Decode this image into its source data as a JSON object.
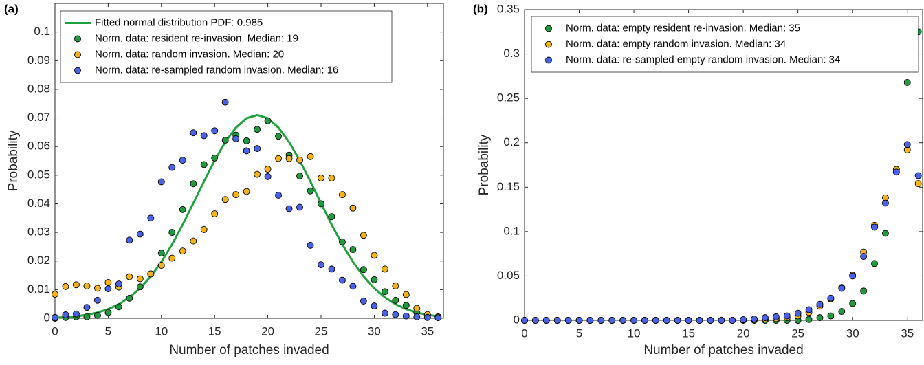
{
  "chart_data": [
    {
      "type": "scatter",
      "panel_label": "(a)",
      "x_label": "Number of patches invaded",
      "y_label": "Probability",
      "x": [
        0,
        1,
        2,
        3,
        4,
        5,
        6,
        7,
        8,
        9,
        10,
        11,
        12,
        13,
        14,
        15,
        16,
        17,
        18,
        19,
        20,
        21,
        22,
        23,
        24,
        25,
        26,
        27,
        28,
        29,
        30,
        31,
        32,
        33,
        34,
        35,
        36
      ],
      "xlim": [
        0,
        36.5
      ],
      "ylim": [
        0,
        0.11
      ],
      "xticks": [
        0,
        5,
        10,
        15,
        20,
        25,
        30,
        35
      ],
      "yticks": [
        0,
        0.01,
        0.02,
        0.03,
        0.04,
        0.05,
        0.06,
        0.07,
        0.08,
        0.09,
        0.1
      ],
      "legend": "upper left",
      "series": [
        {
          "name": "Fitted normal distribution PDF: 0.985",
          "color": "#1fa23c",
          "kind": "line",
          "values": [
            0.0002,
            0.0004,
            0.0007,
            0.0012,
            0.002,
            0.0032,
            0.0049,
            0.0073,
            0.0105,
            0.0146,
            0.0197,
            0.0258,
            0.0327,
            0.0402,
            0.0478,
            0.0551,
            0.0616,
            0.0666,
            0.0699,
            0.071,
            0.0699,
            0.0666,
            0.0616,
            0.0551,
            0.0478,
            0.0402,
            0.0327,
            0.0258,
            0.0197,
            0.0146,
            0.0105,
            0.0073,
            0.0049,
            0.0032,
            0.002,
            0.0012,
            0.0007
          ]
        },
        {
          "name": "Norm. data: resident re-invasion. Median: 19",
          "color": "#1f9a3e",
          "kind": "marker",
          "values": [
            0,
            0.0003,
            0.0005,
            0.0005,
            0.001,
            0.002,
            0.004,
            0.007,
            0.011,
            0.0155,
            0.0228,
            0.03,
            0.038,
            0.047,
            0.0537,
            0.056,
            0.0622,
            0.064,
            0.062,
            0.066,
            0.069,
            0.0636,
            0.057,
            0.0497,
            0.0445,
            0.04,
            0.0355,
            0.0267,
            0.024,
            0.017,
            0.0135,
            0.0093,
            0.0063,
            0.0045,
            0.002,
            0.001,
            0.0005
          ]
        },
        {
          "name": "Norm. data: random invasion. Median: 20",
          "color": "#f4b21b",
          "kind": "marker",
          "values": [
            0.0084,
            0.0111,
            0.0117,
            0.0113,
            0.0105,
            0.0125,
            0.0109,
            0.0145,
            0.0138,
            0.0155,
            0.0185,
            0.021,
            0.0235,
            0.027,
            0.031,
            0.0365,
            0.0415,
            0.0432,
            0.0443,
            0.0503,
            0.0521,
            0.0558,
            0.0558,
            0.0553,
            0.0565,
            0.049,
            0.049,
            0.0432,
            0.0385,
            0.029,
            0.022,
            0.0172,
            0.0113,
            0.0083,
            0.0035,
            0.0013,
            0.0005
          ]
        },
        {
          "name": "Norm. data: re-sampled random invasion. Median: 16",
          "color": "#4a62e6",
          "kind": "marker",
          "values": [
            0.0003,
            0.0012,
            0.0015,
            0.0038,
            0.0063,
            0.0103,
            0.012,
            0.0273,
            0.0294,
            0.035,
            0.0477,
            0.0527,
            0.0552,
            0.0648,
            0.0638,
            0.0655,
            0.0755,
            0.0627,
            0.0585,
            0.0593,
            0.0495,
            0.043,
            0.0383,
            0.0388,
            0.0255,
            0.0187,
            0.0172,
            0.0133,
            0.0112,
            0.006,
            0.0043,
            0.0018,
            0.0013,
            0.0008,
            0.0005,
            0.0003,
            0.0002
          ]
        }
      ]
    },
    {
      "type": "scatter",
      "panel_label": "(b)",
      "x_label": "Number of patches invaded",
      "y_label": "Probability",
      "x": [
        0,
        1,
        2,
        3,
        4,
        5,
        6,
        7,
        8,
        9,
        10,
        11,
        12,
        13,
        14,
        15,
        16,
        17,
        18,
        19,
        20,
        21,
        22,
        23,
        24,
        25,
        26,
        27,
        28,
        29,
        30,
        31,
        32,
        33,
        34,
        35,
        36
      ],
      "xlim": [
        0,
        36.4
      ],
      "ylim": [
        0,
        0.35
      ],
      "xticks": [
        0,
        5,
        10,
        15,
        20,
        25,
        30,
        35
      ],
      "yticks": [
        0,
        0.05,
        0.1,
        0.15,
        0.2,
        0.25,
        0.3,
        0.35
      ],
      "legend": "upper left",
      "series": [
        {
          "name": "Norm. data: empty resident re-invasion. Median: 35",
          "color": "#1f9a3e",
          "kind": "marker",
          "values": [
            0,
            0,
            0,
            0,
            0,
            0,
            0,
            0,
            0,
            0,
            0,
            0,
            0,
            0,
            0,
            0,
            0,
            0,
            0,
            0,
            0,
            0,
            0,
            0,
            0,
            0,
            0.001,
            0.003,
            0.005,
            0.01,
            0.019,
            0.033,
            0.064,
            0.098,
            0.17,
            0.268,
            0.325
          ]
        },
        {
          "name": "Norm. data: empty random invasion. Median: 34",
          "color": "#f4b21b",
          "kind": "marker",
          "values": [
            0,
            0,
            0,
            0,
            0,
            0,
            0,
            0,
            0,
            0,
            0,
            0,
            0,
            0,
            0,
            0,
            0,
            0,
            0,
            0,
            0.0005,
            0.001,
            0.0015,
            0.002,
            0.003,
            0.005,
            0.009,
            0.016,
            0.024,
            0.037,
            0.051,
            0.077,
            0.107,
            0.138,
            0.17,
            0.192,
            0.154
          ]
        },
        {
          "name": "Norm. data: re-sampled empty random invasion. Median: 34",
          "color": "#4a62e6",
          "kind": "marker",
          "values": [
            0,
            0,
            0,
            0,
            0,
            0,
            0,
            0,
            0,
            0,
            0,
            0,
            0,
            0,
            0,
            0,
            0,
            0,
            0,
            0,
            0.0008,
            0.0015,
            0.003,
            0.004,
            0.005,
            0.008,
            0.012,
            0.018,
            0.025,
            0.036,
            0.05,
            0.072,
            0.105,
            0.132,
            0.167,
            0.198,
            0.163
          ]
        }
      ]
    }
  ]
}
